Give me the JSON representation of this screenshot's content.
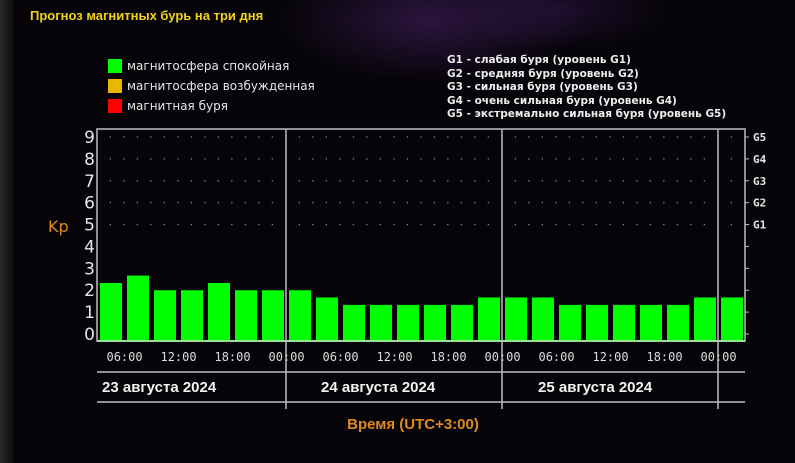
{
  "title": "Прогноз магнитных бурь на три дня",
  "legend": [
    {
      "label": "магнитосфера спокойная",
      "color": "#00ff00"
    },
    {
      "label": "магнитосфера возбужденная",
      "color": "#e6b800"
    },
    {
      "label": "магнитная буря",
      "color": "#ff0000"
    }
  ],
  "storm_levels": [
    "G1 - слабая буря (уровень G1)",
    "G2 - средняя буря (уровень G2)",
    "G3 - сильная буря (уровень G3)",
    "G4 - очень сильная буря (уровень G4)",
    "G5 - экстремально сильная буря (уровень G5)"
  ],
  "chart_data": {
    "type": "bar",
    "title": "Прогноз магнитных бурь на три дня",
    "ylabel": "Kp",
    "xlabel": "Время (UTC+3:00)",
    "ylim": [
      0,
      9
    ],
    "yticks": [
      0,
      1,
      2,
      3,
      4,
      5,
      6,
      7,
      8,
      9
    ],
    "right_axis_labels": [
      {
        "kp": 5,
        "label": "G1"
      },
      {
        "kp": 6,
        "label": "G2"
      },
      {
        "kp": 7,
        "label": "G3"
      },
      {
        "kp": 8,
        "label": "G4"
      },
      {
        "kp": 9,
        "label": "G5"
      }
    ],
    "grid": "dotted",
    "time_ticks": [
      "06:00",
      "12:00",
      "18:00",
      "00:00",
      "06:00",
      "12:00",
      "18:00",
      "00:00",
      "06:00",
      "12:00",
      "18:00",
      "00:00"
    ],
    "days": [
      "23 августа 2024",
      "24 августа 2024",
      "25 августа 2024"
    ],
    "bar_color": "#00ff00",
    "values": [
      2.33,
      2.67,
      2.0,
      2.0,
      2.33,
      2.0,
      2.0,
      2.0,
      1.67,
      1.33,
      1.33,
      1.33,
      1.33,
      1.33,
      1.67,
      1.67,
      1.67,
      1.33,
      1.33,
      1.33,
      1.33,
      1.33,
      1.67,
      1.67
    ]
  }
}
